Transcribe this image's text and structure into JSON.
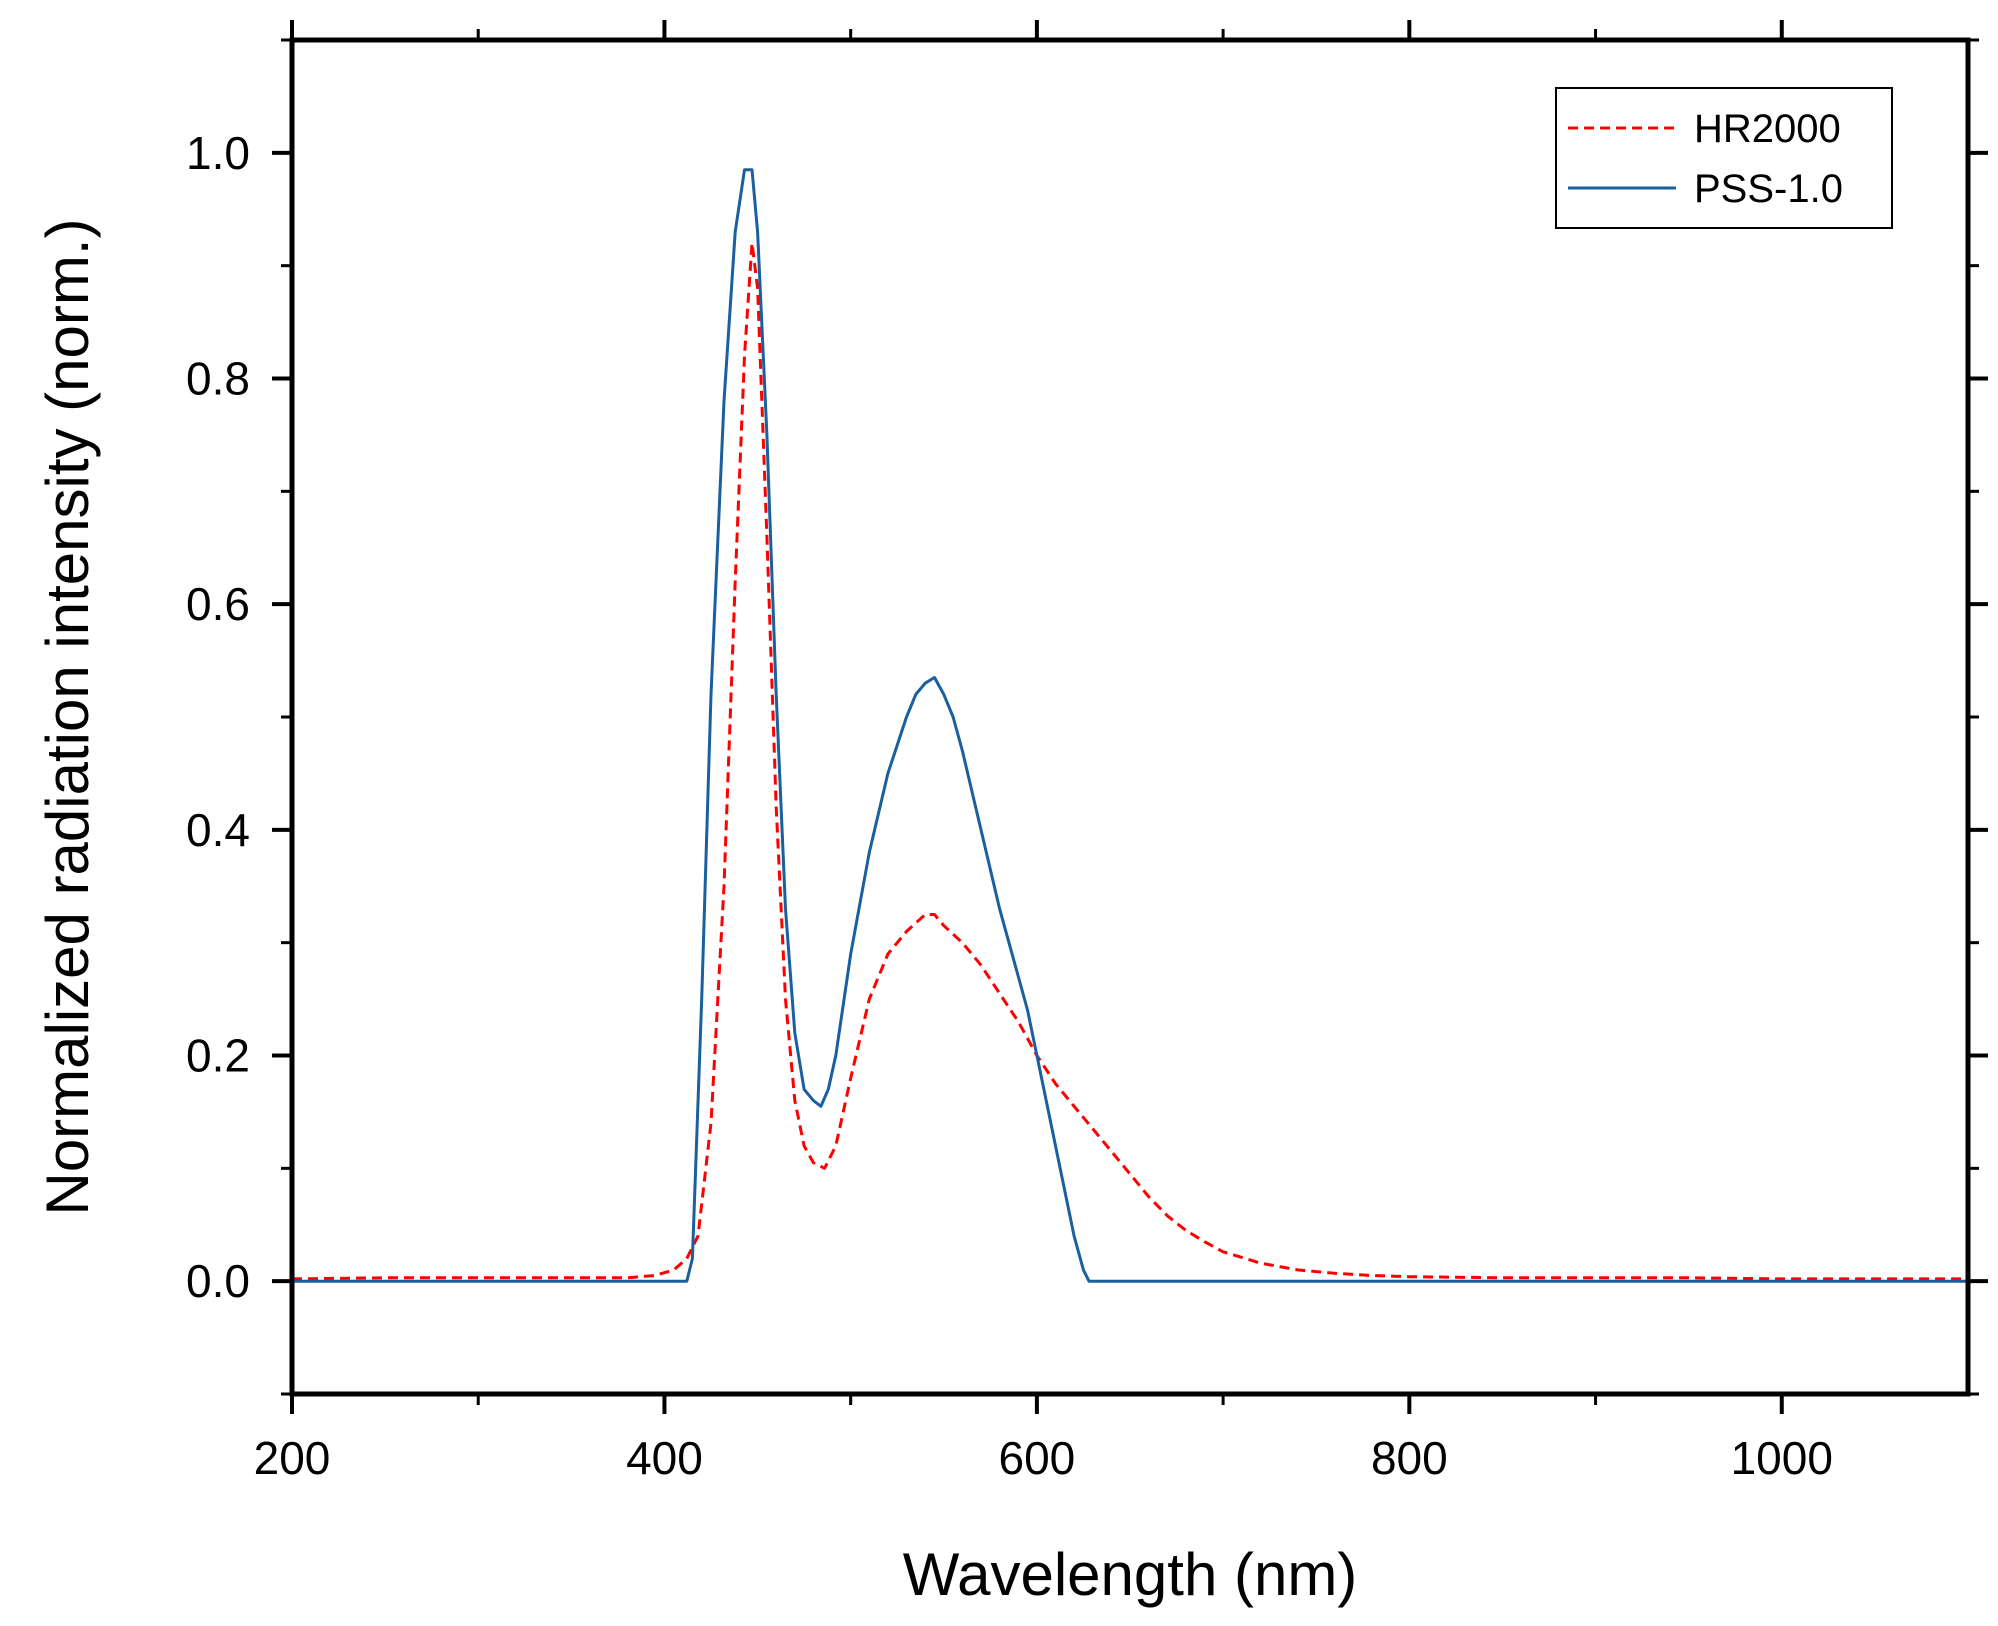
{
  "chart_data": {
    "type": "line",
    "title": "",
    "xlabel": "Wavelength (nm)",
    "ylabel": "Normalized radiation intensity (norm.)",
    "xlim": [
      200,
      1100
    ],
    "ylim": [
      -0.1,
      1.1
    ],
    "x_ticks": [
      200,
      400,
      600,
      800,
      1000
    ],
    "x_tick_labels": [
      "200",
      "400",
      "600",
      "800",
      "1000"
    ],
    "y_ticks": [
      0.0,
      0.2,
      0.4,
      0.6,
      0.8,
      1.0
    ],
    "y_tick_labels": [
      "0.0",
      "0.2",
      "0.4",
      "0.6",
      "0.8",
      "1.0"
    ],
    "grid": false,
    "legend_position": "top-right",
    "series": [
      {
        "name": "HR2000",
        "color": "#ff0000",
        "style": "dashed",
        "x": [
          200,
          250,
          300,
          350,
          380,
          395,
          405,
          412,
          418,
          425,
          432,
          438,
          443,
          447,
          450,
          455,
          460,
          465,
          470,
          475,
          480,
          486,
          492,
          500,
          510,
          520,
          530,
          540,
          545,
          550,
          560,
          570,
          580,
          590,
          600,
          610,
          620,
          630,
          640,
          650,
          660,
          670,
          680,
          690,
          700,
          720,
          740,
          760,
          780,
          800,
          850,
          900,
          950,
          1000,
          1050,
          1100
        ],
        "y": [
          0.002,
          0.003,
          0.003,
          0.003,
          0.003,
          0.005,
          0.01,
          0.02,
          0.04,
          0.14,
          0.35,
          0.62,
          0.82,
          0.92,
          0.88,
          0.66,
          0.42,
          0.25,
          0.16,
          0.12,
          0.105,
          0.1,
          0.12,
          0.18,
          0.25,
          0.29,
          0.31,
          0.325,
          0.325,
          0.315,
          0.3,
          0.28,
          0.255,
          0.23,
          0.2,
          0.175,
          0.155,
          0.135,
          0.115,
          0.095,
          0.075,
          0.058,
          0.045,
          0.035,
          0.026,
          0.016,
          0.01,
          0.007,
          0.005,
          0.004,
          0.003,
          0.003,
          0.003,
          0.002,
          0.002,
          0.002
        ]
      },
      {
        "name": "PSS-1.0",
        "color": "#1a5f9e",
        "style": "solid",
        "x": [
          200,
          300,
          400,
          412,
          415,
          420,
          425,
          432,
          438,
          443,
          447,
          450,
          455,
          460,
          465,
          470,
          475,
          480,
          484,
          488,
          492,
          500,
          510,
          520,
          530,
          535,
          540,
          545,
          550,
          555,
          560,
          570,
          580,
          590,
          595,
          600,
          605,
          610,
          615,
          620,
          625,
          628,
          630,
          700,
          800,
          900,
          1000,
          1100
        ],
        "y": [
          0.0,
          0.0,
          0.0,
          0.0,
          0.02,
          0.25,
          0.52,
          0.78,
          0.93,
          0.985,
          0.985,
          0.93,
          0.75,
          0.52,
          0.33,
          0.22,
          0.17,
          0.16,
          0.155,
          0.17,
          0.2,
          0.29,
          0.38,
          0.45,
          0.5,
          0.52,
          0.53,
          0.535,
          0.52,
          0.5,
          0.47,
          0.4,
          0.33,
          0.27,
          0.24,
          0.2,
          0.16,
          0.12,
          0.08,
          0.04,
          0.01,
          0.0,
          0.0,
          0.0,
          0.0,
          0.0,
          0.0,
          0.0
        ]
      }
    ]
  }
}
